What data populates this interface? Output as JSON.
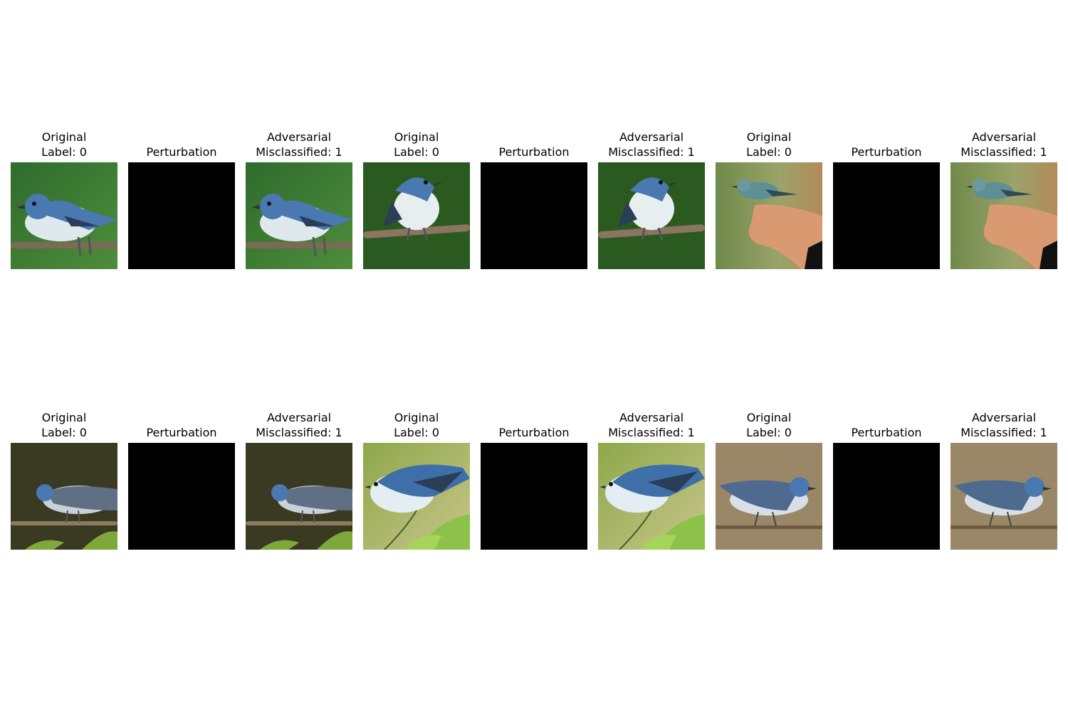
{
  "figure": {
    "rows": [
      {
        "samples": [
          {
            "original_title": [
              "Original",
              "Label: 0"
            ],
            "perturbation_title": [
              "Perturbation"
            ],
            "adversarial_title": [
              "Adversarial",
              "Misclassified: 1"
            ],
            "scene": "green-bg-bird-on-branch"
          },
          {
            "original_title": [
              "Original",
              "Label: 0"
            ],
            "perturbation_title": [
              "Perturbation"
            ],
            "adversarial_title": [
              "Adversarial",
              "Misclassified: 1"
            ],
            "scene": "dark-green-bg-bird-front"
          },
          {
            "original_title": [
              "Original",
              "Label: 0"
            ],
            "perturbation_title": [
              "Perturbation"
            ],
            "adversarial_title": [
              "Adversarial",
              "Misclassified: 1"
            ],
            "scene": "bird-on-hand"
          }
        ]
      },
      {
        "samples": [
          {
            "original_title": [
              "Original",
              "Label: 0"
            ],
            "perturbation_title": [
              "Perturbation"
            ],
            "adversarial_title": [
              "Adversarial",
              "Misclassified: 1"
            ],
            "scene": "dark-bg-bird-on-twig"
          },
          {
            "original_title": [
              "Original",
              "Label: 0"
            ],
            "perturbation_title": [
              "Perturbation"
            ],
            "adversarial_title": [
              "Adversarial",
              "Misclassified: 1"
            ],
            "scene": "leafy-bg-bird"
          },
          {
            "original_title": [
              "Original",
              "Label: 0"
            ],
            "perturbation_title": [
              "Perturbation"
            ],
            "adversarial_title": [
              "Adversarial",
              "Misclassified: 1"
            ],
            "scene": "tan-bg-bird-on-twig"
          }
        ]
      }
    ],
    "colors": {
      "perturbation_fill": "#000000",
      "bird_blue": "#4a78b0",
      "bird_white": "#e8eef2"
    }
  }
}
